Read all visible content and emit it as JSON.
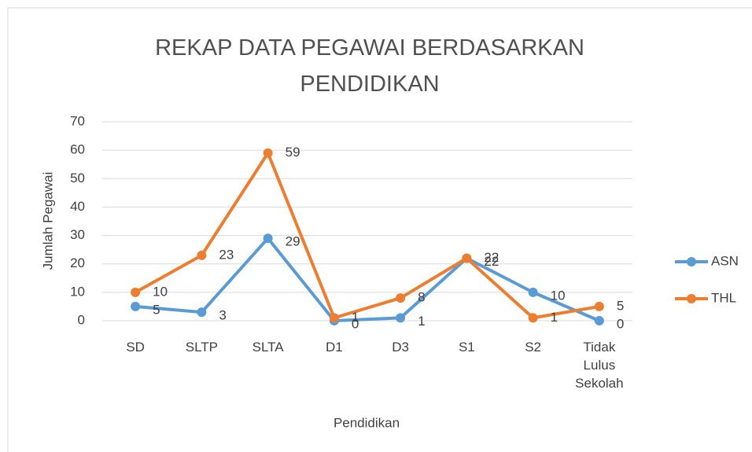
{
  "chart_data": {
    "type": "line",
    "title": "REKAP DATA PEGAWAI BERDASARKAN PENDIDIKAN",
    "x_label": "Pendidikan",
    "y_label": "Jumlah Pegawai",
    "categories": [
      "SD",
      "SLTP",
      "SLTA",
      "D1",
      "D3",
      "S1",
      "S2",
      "Tidak Lulus Sekolah"
    ],
    "series": [
      {
        "name": "ASN",
        "color": "#5b9bd5",
        "values": [
          5,
          3,
          29,
          0,
          1,
          22,
          10,
          0
        ]
      },
      {
        "name": "THL",
        "color": "#ed7d31",
        "values": [
          10,
          23,
          59,
          1,
          8,
          22,
          1,
          5
        ]
      }
    ],
    "ylim": [
      0,
      70
    ],
    "yticks": [
      0,
      10,
      20,
      30,
      40,
      50,
      60,
      70
    ],
    "grid": true,
    "legend": "right"
  }
}
